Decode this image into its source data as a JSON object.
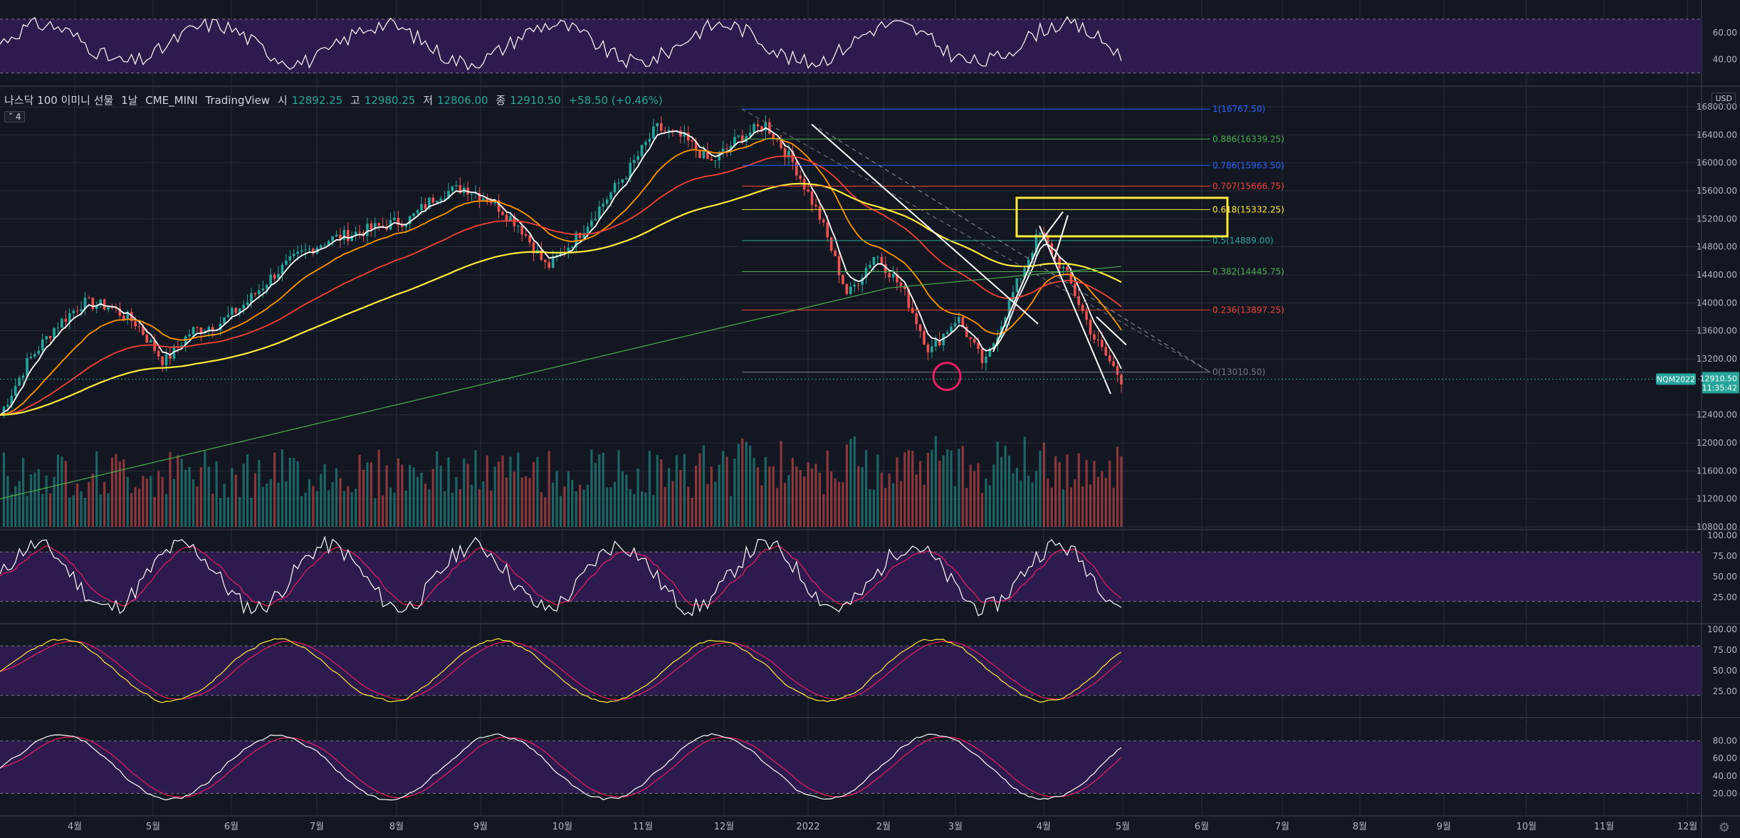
{
  "header": {
    "symbol_name": "나스닥 100 이미니 선물",
    "interval": "1날",
    "exchange": "CME_MINI",
    "source": "TradingView",
    "open_label": "시",
    "open_value": "12892.25",
    "high_label": "고",
    "high_value": "12980.25",
    "low_label": "저",
    "low_value": "12806.00",
    "close_label": "종",
    "close_value": "12910.50",
    "change": "+58.50 (+0.46%)",
    "collapse_badge": "4"
  },
  "currency": "USD",
  "price_tag": {
    "symbol": "NQM2022",
    "price": "12910.50",
    "countdown": "11:35:42"
  },
  "colors": {
    "bg": "#131722",
    "grid": "#2a2e39",
    "up": "#26a69a",
    "down": "#ef5350",
    "ema_white": "#ffffff",
    "ema_orange": "#ff9800",
    "ema_red": "#f44336",
    "ema_yellow": "#ffeb3b",
    "ema_green": "#4caf50",
    "band": "#2d1b4e",
    "highlight_box": "#ffeb3b",
    "circle": "#e91e63"
  },
  "chart_data": {
    "type": "candlestick",
    "y_axis_ticks": [
      "16800.00",
      "16400.00",
      "16000.00",
      "15600.00",
      "15200.00",
      "14800.00",
      "14400.00",
      "14000.00",
      "13600.00",
      "13200.00",
      "12400.00",
      "12000.00",
      "11600.00",
      "11200.00",
      "10800.00"
    ],
    "ylim": [
      10800,
      16800
    ],
    "x_axis_labels": [
      "4월",
      "5월",
      "6월",
      "7월",
      "8월",
      "9월",
      "10월",
      "11월",
      "12월",
      "2022",
      "2월",
      "3월",
      "4월",
      "5월",
      "6월",
      "7월",
      "8월",
      "9월",
      "10월",
      "11월",
      "12월"
    ],
    "close_path": [
      [
        "3월",
        12400
      ],
      [
        "3월말",
        13150
      ],
      [
        "4월초",
        13650
      ],
      [
        "4월중",
        14000
      ],
      [
        "4월말",
        13950
      ],
      [
        "5월초",
        13700
      ],
      [
        "5월중",
        13150
      ],
      [
        "5월말",
        13600
      ],
      [
        "6월초",
        13700
      ],
      [
        "6월중",
        14000
      ],
      [
        "6월말",
        14400
      ],
      [
        "7월초",
        14700
      ],
      [
        "7월중",
        14900
      ],
      [
        "7월말",
        15000
      ],
      [
        "8월초",
        15100
      ],
      [
        "8월중",
        15200
      ],
      [
        "8월말",
        15550
      ],
      [
        "9월초",
        15650
      ],
      [
        "9월중",
        15450
      ],
      [
        "9월말",
        15100
      ],
      [
        "10월초",
        14500
      ],
      [
        "10월중",
        14900
      ],
      [
        "10월말",
        15400
      ],
      [
        "11월초",
        15900
      ],
      [
        "11월중",
        16500
      ],
      [
        "11월말",
        16350
      ],
      [
        "12월초",
        16000
      ],
      [
        "12월중",
        16350
      ],
      [
        "12월말",
        16550
      ],
      [
        "1월초",
        16000
      ],
      [
        "1월중",
        15200
      ],
      [
        "1월말",
        14100
      ],
      [
        "2월초",
        14700
      ],
      [
        "2월중",
        14200
      ],
      [
        "2월말",
        13300
      ],
      [
        "3월초",
        13800
      ],
      [
        "3월중",
        13100
      ],
      [
        "3월말",
        14100
      ],
      [
        "4월초",
        15000
      ],
      [
        "4월중",
        14400
      ],
      [
        "4월말",
        13500
      ],
      [
        "5월초",
        12910
      ]
    ],
    "fibonacci": [
      {
        "level": "1(16767.50)",
        "color": "#2962ff"
      },
      {
        "level": "0.886(16339.25)",
        "color": "#4caf50"
      },
      {
        "level": "0.786(15963.50)",
        "color": "#2962ff"
      },
      {
        "level": "0.707(15666.75)",
        "color": "#f44336"
      },
      {
        "level": "0.618(15332.25)",
        "color": "#ffeb3b"
      },
      {
        "level": "0.5(14889.00)",
        "color": "#26a69a"
      },
      {
        "level": "0.382(14445.75)",
        "color": "#4caf50"
      },
      {
        "level": "0.236(13897.25)",
        "color": "#f44336"
      },
      {
        "level": "0(13010.50)",
        "color": "#787b86"
      }
    ],
    "fib_values": [
      16767.5,
      16339.25,
      15963.5,
      15666.75,
      15332.25,
      14889.0,
      14445.75,
      13897.25,
      13010.5
    ],
    "rsi_ticks": [
      "60.00",
      "40.00"
    ],
    "stoch1_ticks": [
      "100.00",
      "75.00",
      "50.00",
      "25.00"
    ],
    "stoch2_ticks": [
      "100.00",
      "75.00",
      "50.00",
      "25.00"
    ],
    "stoch3_ticks": [
      "80.00",
      "60.00",
      "40.00",
      "20.00"
    ]
  }
}
